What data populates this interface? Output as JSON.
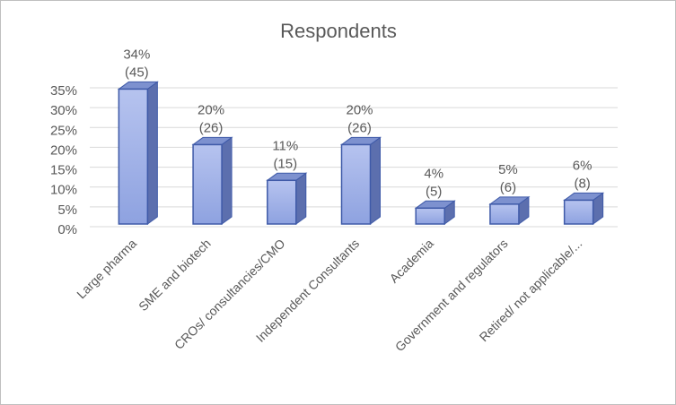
{
  "chart_data": {
    "type": "bar3d",
    "title": "Respondents",
    "categories": [
      "Large pharma",
      "SME and biotech",
      "CROs/ consultancies/CMO",
      "Independent Consultants",
      "Academia",
      "Government and regulators",
      "Retired/ not applicable/..."
    ],
    "values": [
      34,
      20,
      11,
      20,
      4,
      5,
      6
    ],
    "value_labels": [
      "34%",
      "20%",
      "11%",
      "20%",
      "4%",
      "5%",
      "6%"
    ],
    "count_labels": [
      "(45)",
      "(26)",
      "(15)",
      "(26)",
      "(5)",
      "(6)",
      "(8)"
    ],
    "color": "#9fb1ea",
    "ylim": [
      0,
      35
    ],
    "yticks": [
      {
        "value": 0,
        "label": "0%"
      },
      {
        "value": 5,
        "label": "5%"
      },
      {
        "value": 10,
        "label": "10%"
      },
      {
        "value": 15,
        "label": "15%"
      },
      {
        "value": 20,
        "label": "20%"
      },
      {
        "value": 25,
        "label": "25%"
      },
      {
        "value": 30,
        "label": "30%"
      },
      {
        "value": 35,
        "label": "35%"
      }
    ],
    "grid": true
  }
}
